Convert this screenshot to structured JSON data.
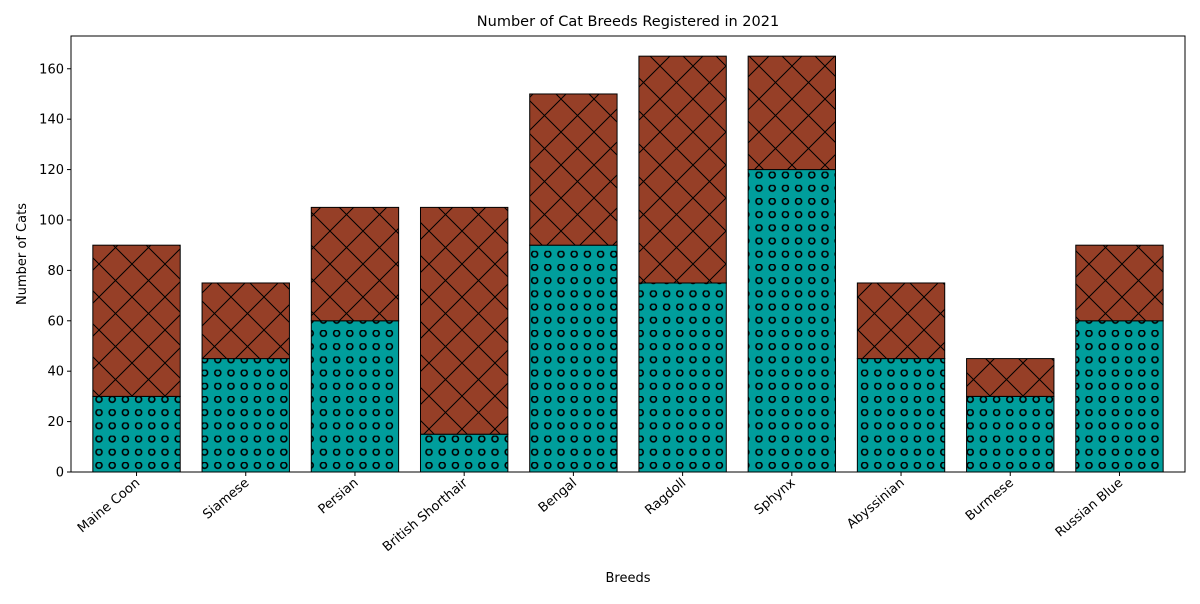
{
  "chart_data": {
    "type": "bar",
    "stacked": true,
    "title": "Number of Cat Breeds Registered in 2021",
    "xlabel": "Breeds",
    "ylabel": "Number of Cats",
    "categories": [
      "Maine Coon",
      "Siamese",
      "Persian",
      "British Shorthair",
      "Bengal",
      "Ragdoll",
      "Sphynx",
      "Abyssinian",
      "Burmese",
      "Russian Blue"
    ],
    "series": [
      {
        "values": [
          30,
          45,
          60,
          15,
          90,
          75,
          120,
          45,
          30,
          60
        ],
        "color": "#009e9c",
        "hatch": "circles"
      },
      {
        "values": [
          60,
          30,
          45,
          90,
          60,
          90,
          45,
          30,
          15,
          30
        ],
        "color": "#963f27",
        "hatch": "crosshatch"
      }
    ],
    "ylim": [
      0,
      173
    ],
    "yticks": [
      0,
      20,
      40,
      60,
      80,
      100,
      120,
      140,
      160
    ],
    "grid": false,
    "legend": "none"
  }
}
